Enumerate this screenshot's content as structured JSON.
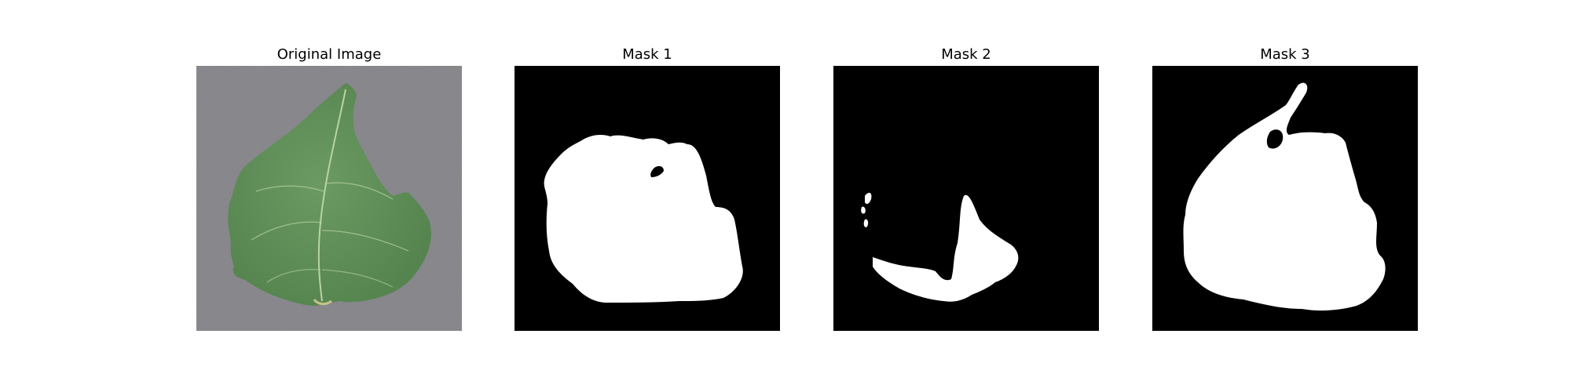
{
  "panels": [
    {
      "title": "Original Image",
      "content": "leaf-photo",
      "background": "#8a8a8e"
    },
    {
      "title": "Mask 1",
      "content": "binary-mask",
      "background": "#000000",
      "foreground": "#ffffff"
    },
    {
      "title": "Mask 2",
      "content": "binary-mask",
      "background": "#000000",
      "foreground": "#ffffff"
    },
    {
      "title": "Mask 3",
      "content": "binary-mask",
      "background": "#000000",
      "foreground": "#ffffff"
    }
  ],
  "colors": {
    "leaf": "#5f8f57",
    "vein": "#b9d3a7",
    "mask_fg": "#ffffff",
    "mask_bg": "#000000"
  }
}
